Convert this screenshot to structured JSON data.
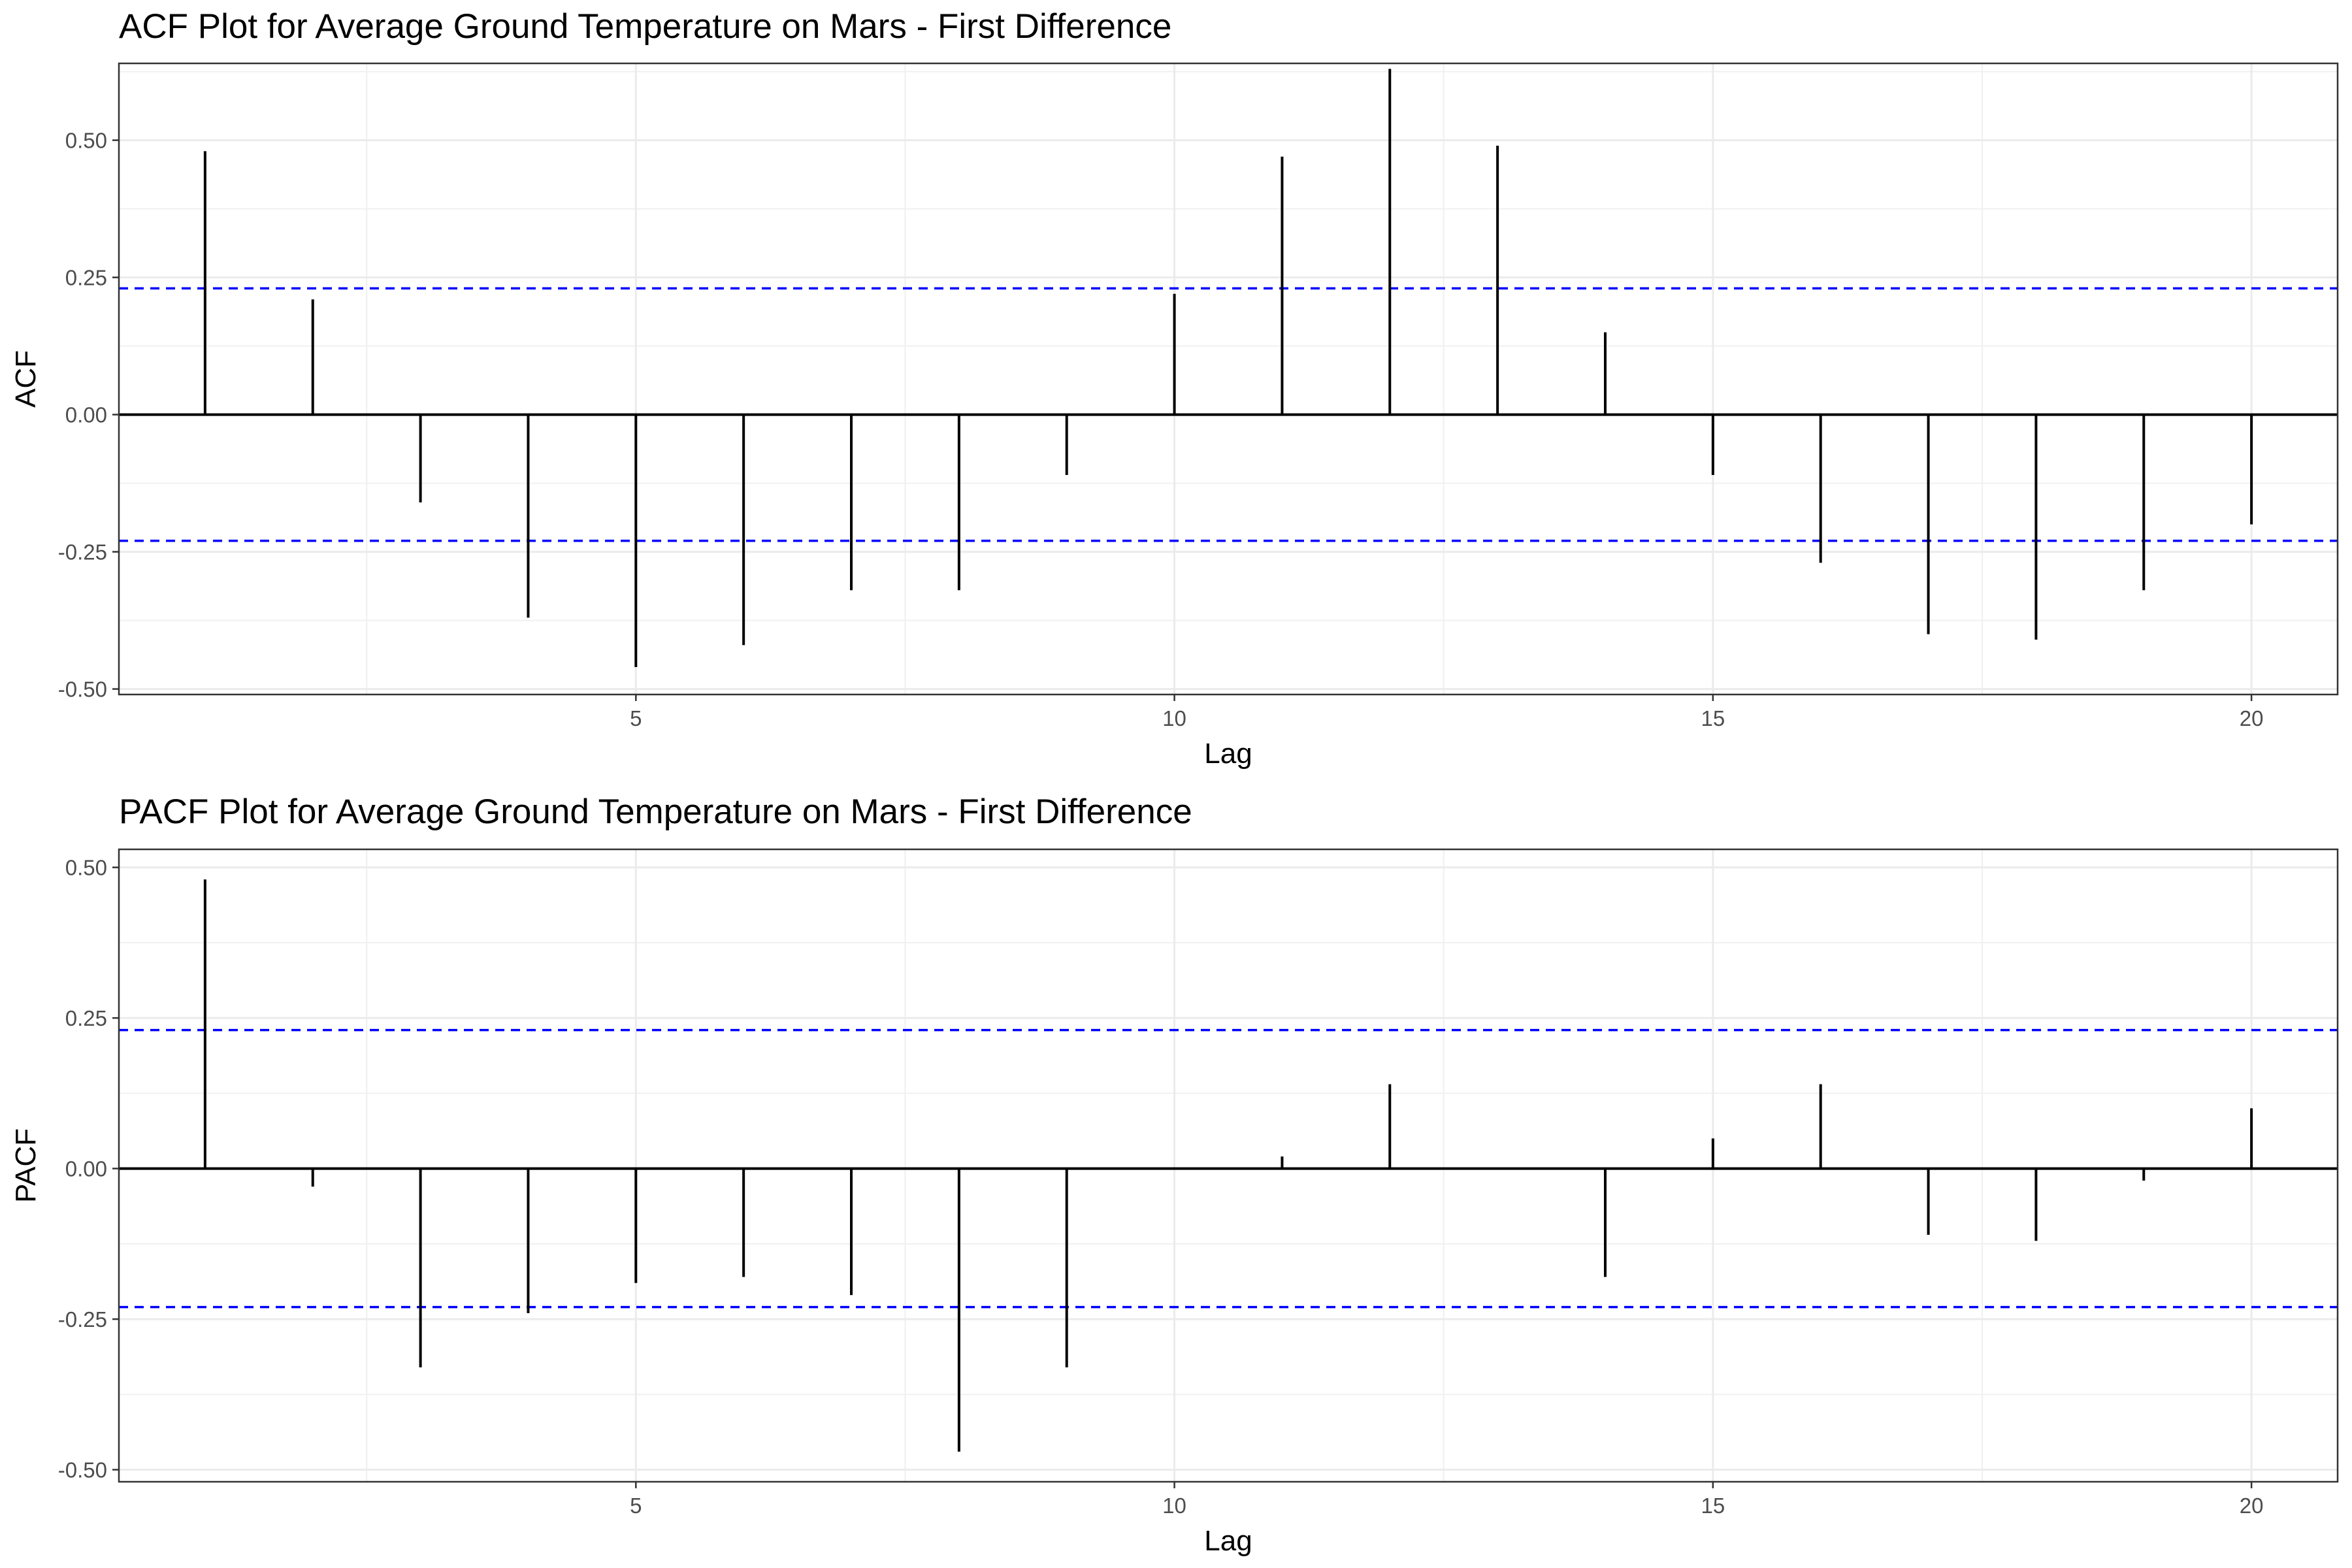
{
  "chart_data": [
    {
      "type": "bar",
      "title": "ACF Plot for Average Ground Temperature on Mars - First Difference",
      "xlabel": "Lag",
      "ylabel": "ACF",
      "xlim": [
        0.2,
        20.8
      ],
      "ylim": [
        -0.51,
        0.64
      ],
      "xticks": [
        "5",
        "10",
        "15",
        "20"
      ],
      "yticks": [
        "0.50",
        "0.25",
        "0.00",
        "-0.25",
        "-0.50"
      ],
      "grid": true,
      "confidence_bound": 0.23,
      "confidence_color": "#0000ff",
      "lags": [
        1,
        2,
        3,
        4,
        5,
        6,
        7,
        8,
        9,
        10,
        11,
        12,
        13,
        14,
        15,
        16,
        17,
        18,
        19,
        20
      ],
      "values": [
        0.48,
        0.21,
        -0.16,
        -0.37,
        -0.46,
        -0.42,
        -0.32,
        -0.32,
        -0.11,
        0.22,
        0.47,
        0.63,
        0.49,
        0.15,
        -0.11,
        -0.27,
        -0.4,
        -0.41,
        -0.32,
        -0.2
      ]
    },
    {
      "type": "bar",
      "title": "PACF Plot for Average Ground Temperature on Mars - First Difference",
      "xlabel": "Lag",
      "ylabel": "PACF",
      "xlim": [
        0.2,
        20.8
      ],
      "ylim": [
        -0.52,
        0.53
      ],
      "xticks": [
        "5",
        "10",
        "15",
        "20"
      ],
      "yticks": [
        "0.50",
        "0.25",
        "0.00",
        "-0.25",
        "-0.50"
      ],
      "grid": true,
      "confidence_bound": 0.23,
      "confidence_color": "#0000ff",
      "lags": [
        1,
        2,
        3,
        4,
        5,
        6,
        7,
        8,
        9,
        10,
        11,
        12,
        13,
        14,
        15,
        16,
        17,
        18,
        19,
        20
      ],
      "values": [
        0.48,
        -0.03,
        -0.33,
        -0.24,
        -0.19,
        -0.18,
        -0.21,
        -0.47,
        -0.33,
        0.0,
        0.02,
        0.14,
        0.0,
        -0.18,
        0.05,
        0.14,
        -0.11,
        -0.12,
        -0.02,
        0.1
      ]
    }
  ]
}
